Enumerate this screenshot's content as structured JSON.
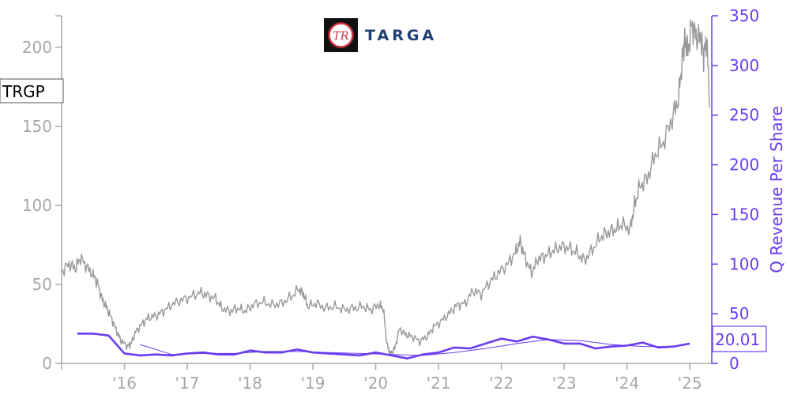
{
  "chart_data": {
    "type": "line",
    "ticker": "TRGP",
    "logo_text": "TARGA",
    "logo_monogram": "TR",
    "last_value_label": "20.01",
    "x_tick_labels": [
      "'16",
      "'17",
      "'18",
      "'19",
      "'20",
      "'21",
      "'22",
      "'23",
      "'24",
      "'25"
    ],
    "x_range": [
      2015.0,
      2025.35
    ],
    "left_axis": {
      "ylim": [
        0,
        220
      ],
      "ticks": [
        0,
        50,
        100,
        150,
        200
      ],
      "color": "#a8a8a8"
    },
    "right_axis": {
      "label": "Q Revenue Per Share",
      "ylim": [
        0,
        350
      ],
      "ticks": [
        0,
        50,
        100,
        150,
        200,
        250,
        300,
        350
      ],
      "color": "#6a3df0"
    },
    "series": [
      {
        "axis": "left",
        "color": "#999999",
        "points": [
          [
            2015.0,
            58
          ],
          [
            2015.12,
            63
          ],
          [
            2015.22,
            60
          ],
          [
            2015.3,
            67
          ],
          [
            2015.4,
            61
          ],
          [
            2015.5,
            56
          ],
          [
            2015.58,
            50
          ],
          [
            2015.65,
            40
          ],
          [
            2015.72,
            35
          ],
          [
            2015.8,
            28
          ],
          [
            2015.88,
            20
          ],
          [
            2015.95,
            14
          ],
          [
            2016.05,
            11
          ],
          [
            2016.1,
            12
          ],
          [
            2016.18,
            20
          ],
          [
            2016.28,
            25
          ],
          [
            2016.38,
            29
          ],
          [
            2016.5,
            30
          ],
          [
            2016.62,
            33
          ],
          [
            2016.75,
            37
          ],
          [
            2016.9,
            40
          ],
          [
            2017.05,
            42
          ],
          [
            2017.2,
            45
          ],
          [
            2017.32,
            43
          ],
          [
            2017.45,
            41
          ],
          [
            2017.55,
            35
          ],
          [
            2017.68,
            33
          ],
          [
            2017.8,
            35
          ],
          [
            2017.92,
            33
          ],
          [
            2018.05,
            37
          ],
          [
            2018.2,
            39
          ],
          [
            2018.35,
            37
          ],
          [
            2018.5,
            38
          ],
          [
            2018.65,
            42
          ],
          [
            2018.78,
            47
          ],
          [
            2018.85,
            44
          ],
          [
            2018.92,
            36
          ],
          [
            2019.05,
            38
          ],
          [
            2019.2,
            35
          ],
          [
            2019.35,
            36
          ],
          [
            2019.5,
            34
          ],
          [
            2019.65,
            35
          ],
          [
            2019.8,
            36
          ],
          [
            2019.92,
            34
          ],
          [
            2020.05,
            37
          ],
          [
            2020.12,
            35
          ],
          [
            2020.18,
            12
          ],
          [
            2020.23,
            6
          ],
          [
            2020.3,
            9
          ],
          [
            2020.38,
            22
          ],
          [
            2020.48,
            18
          ],
          [
            2020.58,
            17
          ],
          [
            2020.7,
            14
          ],
          [
            2020.82,
            17
          ],
          [
            2020.92,
            23
          ],
          [
            2021.05,
            27
          ],
          [
            2021.18,
            32
          ],
          [
            2021.3,
            37
          ],
          [
            2021.42,
            38
          ],
          [
            2021.55,
            46
          ],
          [
            2021.68,
            44
          ],
          [
            2021.82,
            52
          ],
          [
            2021.95,
            57
          ],
          [
            2022.1,
            63
          ],
          [
            2022.22,
            70
          ],
          [
            2022.3,
            77
          ],
          [
            2022.38,
            67
          ],
          [
            2022.48,
            57
          ],
          [
            2022.58,
            66
          ],
          [
            2022.7,
            68
          ],
          [
            2022.82,
            71
          ],
          [
            2022.95,
            74
          ],
          [
            2023.08,
            73
          ],
          [
            2023.2,
            70
          ],
          [
            2023.32,
            65
          ],
          [
            2023.45,
            72
          ],
          [
            2023.58,
            80
          ],
          [
            2023.7,
            83
          ],
          [
            2023.82,
            85
          ],
          [
            2023.92,
            88
          ],
          [
            2024.05,
            85
          ],
          [
            2024.12,
            100
          ],
          [
            2024.2,
            112
          ],
          [
            2024.32,
            117
          ],
          [
            2024.45,
            132
          ],
          [
            2024.58,
            140
          ],
          [
            2024.72,
            155
          ],
          [
            2024.82,
            168
          ],
          [
            2024.88,
            192
          ],
          [
            2024.92,
            205
          ],
          [
            2024.97,
            197
          ],
          [
            2025.03,
            215
          ],
          [
            2025.1,
            207
          ],
          [
            2025.18,
            205
          ],
          [
            2025.22,
            195
          ],
          [
            2025.27,
            205
          ],
          [
            2025.32,
            162
          ]
        ]
      },
      {
        "axis": "right",
        "color": "#6a3df0",
        "points": [
          [
            2015.25,
            30
          ],
          [
            2015.5,
            30
          ],
          [
            2015.75,
            28
          ],
          [
            2016.0,
            10
          ],
          [
            2016.25,
            8
          ],
          [
            2016.5,
            9
          ],
          [
            2016.75,
            8
          ],
          [
            2017.0,
            10
          ],
          [
            2017.25,
            11
          ],
          [
            2017.5,
            9
          ],
          [
            2017.75,
            9
          ],
          [
            2018.0,
            13
          ],
          [
            2018.25,
            11
          ],
          [
            2018.5,
            11
          ],
          [
            2018.75,
            14
          ],
          [
            2019.0,
            11
          ],
          [
            2019.25,
            10
          ],
          [
            2019.5,
            9
          ],
          [
            2019.75,
            8
          ],
          [
            2020.0,
            11
          ],
          [
            2020.25,
            8
          ],
          [
            2020.5,
            5
          ],
          [
            2020.75,
            9
          ],
          [
            2021.0,
            11
          ],
          [
            2021.25,
            16
          ],
          [
            2021.5,
            15
          ],
          [
            2021.75,
            20
          ],
          [
            2022.0,
            25
          ],
          [
            2022.25,
            22
          ],
          [
            2022.5,
            27
          ],
          [
            2022.75,
            24
          ],
          [
            2023.0,
            20
          ],
          [
            2023.25,
            20
          ],
          [
            2023.5,
            15
          ],
          [
            2023.75,
            17
          ],
          [
            2024.0,
            18
          ],
          [
            2024.25,
            21
          ],
          [
            2024.5,
            16
          ],
          [
            2024.75,
            17
          ],
          [
            2025.0,
            20
          ]
        ]
      },
      {
        "axis": "right",
        "color": "#6a3df0",
        "thin": true,
        "points": [
          [
            2016.25,
            19
          ],
          [
            2016.75,
            9
          ],
          [
            2017.25,
            10
          ],
          [
            2017.75,
            10
          ],
          [
            2018.25,
            12
          ],
          [
            2018.75,
            12
          ],
          [
            2019.25,
            11
          ],
          [
            2019.75,
            10
          ],
          [
            2020.25,
            9
          ],
          [
            2020.75,
            8
          ],
          [
            2021.25,
            11
          ],
          [
            2021.75,
            15
          ],
          [
            2022.25,
            20
          ],
          [
            2022.75,
            24
          ],
          [
            2023.25,
            23
          ],
          [
            2023.75,
            19
          ],
          [
            2024.25,
            17
          ],
          [
            2024.75,
            17
          ]
        ]
      }
    ]
  }
}
